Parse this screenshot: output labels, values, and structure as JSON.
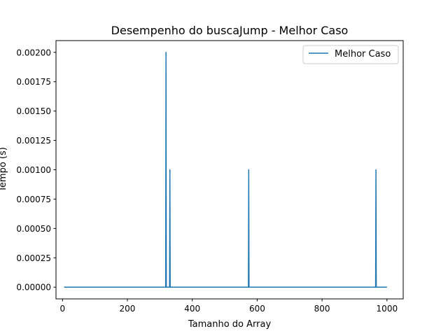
{
  "chart_data": {
    "type": "line",
    "title": "Desempenho do buscaJump - Melhor Caso",
    "xlabel": "Tamanho do Array",
    "ylabel": "Tempo (s)",
    "xlim": [
      -20,
      1050
    ],
    "ylim": [
      -0.0001,
      0.0021
    ],
    "xticks": [
      0,
      200,
      400,
      600,
      800,
      1000
    ],
    "xtick_labels": [
      "0",
      "200",
      "400",
      "600",
      "800",
      "1000"
    ],
    "yticks": [
      0,
      0.00025,
      0.0005,
      0.00075,
      0.001,
      0.00125,
      0.0015,
      0.00175,
      0.002
    ],
    "ytick_labels": [
      "0.00000",
      "0.00025",
      "0.00050",
      "0.00075",
      "0.00100",
      "0.00125",
      "0.00150",
      "0.00175",
      "0.00200"
    ],
    "grid": false,
    "legend_position": "top-right",
    "series": [
      {
        "name": "Melhor Caso",
        "color": "#1f77b4",
        "x": [
          5,
          318,
          319,
          320,
          330,
          331,
          332,
          573,
          574,
          575,
          965,
          966,
          967,
          1000
        ],
        "y": [
          0,
          0,
          0.002,
          0,
          0,
          0.001,
          0,
          0,
          0.001,
          0,
          0,
          0.001,
          0,
          0
        ]
      }
    ]
  }
}
